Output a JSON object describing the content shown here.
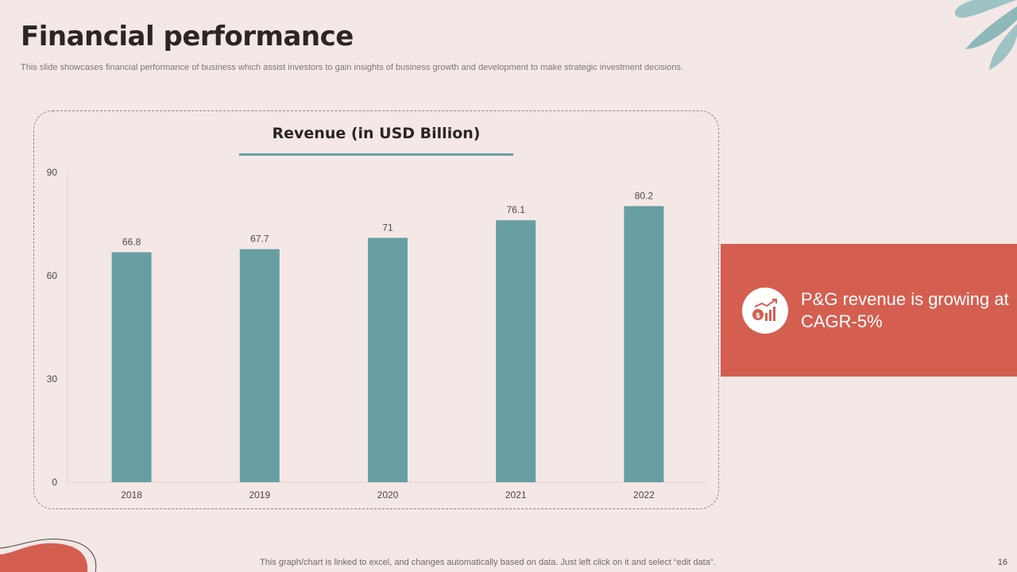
{
  "slide": {
    "title": "Financial performance",
    "subtitle": "This slide showcases financial performance of business which assist investors to gain insights of business growth and development to make strategic investment decisions.",
    "footer_note": "This graph/chart is linked to excel, and changes automatically based on data. Just left click on it and select “edit data”.",
    "page_number": "16"
  },
  "callout": {
    "text": "P&G revenue is growing at CAGR-5%",
    "icon": "revenue-growth-icon"
  },
  "colors": {
    "background": "#f4e8e6",
    "bar": "#679ea1",
    "accent": "#d45f51",
    "leaf": "#9dc3c4"
  },
  "chart_data": {
    "type": "bar",
    "title": "Revenue (in USD Billion)",
    "categories": [
      "2018",
      "2019",
      "2020",
      "2021",
      "2022"
    ],
    "values": [
      66.8,
      67.7,
      71,
      76.1,
      80.2
    ],
    "data_labels": [
      "66.8",
      "67.7",
      "71",
      "76.1",
      "80.2"
    ],
    "xlabel": "",
    "ylabel": "",
    "ylim": [
      0,
      90
    ],
    "yticks": [
      0,
      30,
      60,
      90
    ],
    "grid": false,
    "legend": "none"
  }
}
